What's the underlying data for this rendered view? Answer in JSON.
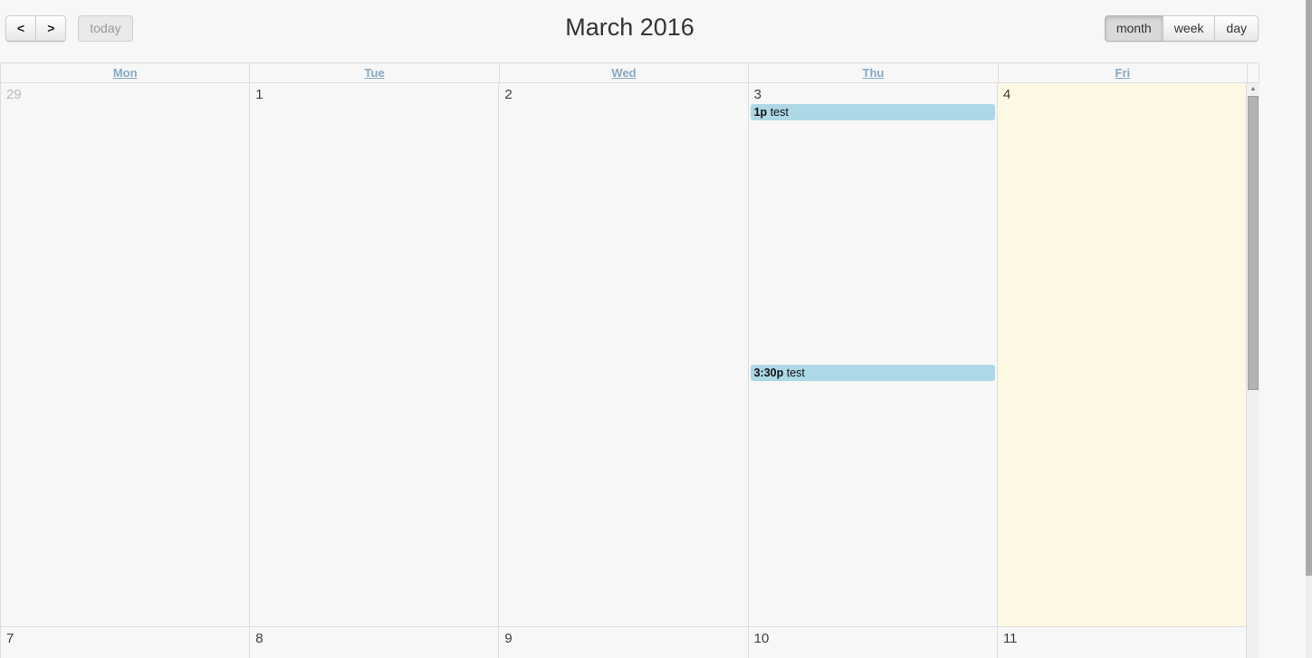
{
  "toolbar": {
    "prev_icon": "<",
    "next_icon": ">",
    "today_label": "today"
  },
  "header": {
    "title": "March 2016"
  },
  "views": {
    "month": "month",
    "week": "week",
    "day": "day",
    "active": "month"
  },
  "calendar": {
    "day_headers": [
      "Mon",
      "Tue",
      "Wed",
      "Thu",
      "Fri"
    ],
    "weeks": [
      {
        "days": [
          {
            "number": "29",
            "other_month": true
          },
          {
            "number": "1"
          },
          {
            "number": "2"
          },
          {
            "number": "3"
          },
          {
            "number": "4",
            "today": true
          }
        ]
      },
      {
        "days": [
          {
            "number": "7"
          },
          {
            "number": "8"
          },
          {
            "number": "9"
          },
          {
            "number": "10"
          },
          {
            "number": "11"
          }
        ]
      }
    ],
    "events": [
      {
        "time": "1p",
        "title": "test",
        "day": "Thu March 3"
      },
      {
        "time": "3:30p",
        "title": "test",
        "day": "Thu March 3"
      }
    ],
    "colors": {
      "event_bg": "#add8e6",
      "today_bg": "#fcf8e3",
      "header_link": "#85a9c5",
      "border": "#dddddd"
    }
  }
}
